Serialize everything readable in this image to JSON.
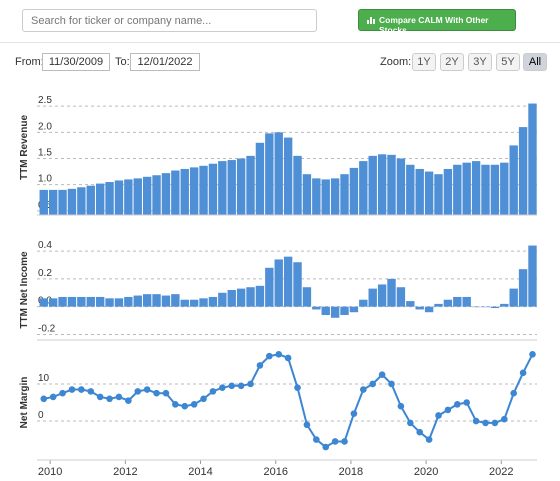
{
  "toolbar": {
    "search_placeholder": "Search for ticker or company name...",
    "compare_button": "Compare CALM With Other Stocks",
    "from_label": "From:",
    "from_date": "11/30/2009",
    "to_label": "To:",
    "to_date": "12/01/2022",
    "zoom_label": "Zoom:",
    "zoom_options": [
      "1Y",
      "2Y",
      "3Y",
      "5Y",
      "All"
    ],
    "zoom_selected": "All"
  },
  "chart_data": [
    {
      "type": "bar",
      "y_label": "TTM Revenue",
      "color": "#4f8fd6",
      "grid": true,
      "x": [
        2009.83,
        2010.08,
        2010.33,
        2010.58,
        2010.83,
        2011.08,
        2011.33,
        2011.58,
        2011.83,
        2012.08,
        2012.33,
        2012.58,
        2012.83,
        2013.08,
        2013.33,
        2013.58,
        2013.83,
        2014.08,
        2014.33,
        2014.58,
        2014.83,
        2015.08,
        2015.33,
        2015.58,
        2015.83,
        2016.08,
        2016.33,
        2016.58,
        2016.83,
        2017.08,
        2017.33,
        2017.58,
        2017.83,
        2018.08,
        2018.33,
        2018.58,
        2018.83,
        2019.08,
        2019.33,
        2019.58,
        2019.83,
        2020.08,
        2020.33,
        2020.58,
        2020.83,
        2021.08,
        2021.33,
        2021.58,
        2021.83,
        2022.08,
        2022.33,
        2022.58,
        2022.83
      ],
      "values": [
        0.9,
        0.9,
        0.9,
        0.92,
        0.95,
        0.98,
        1.02,
        1.05,
        1.08,
        1.1,
        1.12,
        1.15,
        1.18,
        1.22,
        1.27,
        1.3,
        1.33,
        1.36,
        1.4,
        1.45,
        1.47,
        1.5,
        1.55,
        1.8,
        1.98,
        2.0,
        1.9,
        1.55,
        1.2,
        1.12,
        1.1,
        1.12,
        1.2,
        1.32,
        1.45,
        1.55,
        1.58,
        1.57,
        1.5,
        1.38,
        1.3,
        1.25,
        1.2,
        1.3,
        1.38,
        1.42,
        1.45,
        1.38,
        1.38,
        1.42,
        1.75,
        2.1,
        2.55
      ],
      "xlim": [
        2009.65,
        2022.95
      ],
      "ylim": [
        0.42,
        3.0
      ],
      "yticks": [
        0.5,
        {
          "value": 1,
          "label": "1.0"
        },
        1.5,
        {
          "value": 2,
          "label": "2.0"
        },
        2.5
      ]
    },
    {
      "type": "bar",
      "y_label": "TTM Net Income",
      "color": "#4f8fd6",
      "grid": true,
      "x": [
        2009.83,
        2010.08,
        2010.33,
        2010.58,
        2010.83,
        2011.08,
        2011.33,
        2011.58,
        2011.83,
        2012.08,
        2012.33,
        2012.58,
        2012.83,
        2013.08,
        2013.33,
        2013.58,
        2013.83,
        2014.08,
        2014.33,
        2014.58,
        2014.83,
        2015.08,
        2015.33,
        2015.58,
        2015.83,
        2016.08,
        2016.33,
        2016.58,
        2016.83,
        2017.08,
        2017.33,
        2017.58,
        2017.83,
        2018.08,
        2018.33,
        2018.58,
        2018.83,
        2019.08,
        2019.33,
        2019.58,
        2019.83,
        2020.08,
        2020.33,
        2020.58,
        2020.83,
        2021.08,
        2021.33,
        2021.58,
        2021.83,
        2022.08,
        2022.33,
        2022.58,
        2022.83
      ],
      "values": [
        0.06,
        0.06,
        0.07,
        0.07,
        0.07,
        0.07,
        0.07,
        0.06,
        0.06,
        0.07,
        0.08,
        0.09,
        0.09,
        0.08,
        0.09,
        0.05,
        0.05,
        0.06,
        0.07,
        0.1,
        0.12,
        0.13,
        0.14,
        0.15,
        0.28,
        0.34,
        0.36,
        0.32,
        0.14,
        -0.02,
        -0.06,
        -0.08,
        -0.06,
        -0.04,
        0.05,
        0.13,
        0.16,
        0.2,
        0.14,
        0.04,
        -0.02,
        -0.04,
        0.02,
        0.05,
        0.07,
        0.07,
        0.0,
        0.0,
        -0.01,
        0.02,
        0.13,
        0.27,
        0.44
      ],
      "xlim": [
        2009.65,
        2022.95
      ],
      "ylim": [
        -0.24,
        0.48
      ],
      "yticks": [
        -0.2,
        {
          "value": 0,
          "label": "0.0"
        },
        0.2,
        0.4
      ]
    },
    {
      "type": "line",
      "y_label": "Net Margin",
      "color": "#3c86d2",
      "grid": true,
      "x": [
        2009.83,
        2010.08,
        2010.33,
        2010.58,
        2010.83,
        2011.08,
        2011.33,
        2011.58,
        2011.83,
        2012.08,
        2012.33,
        2012.58,
        2012.83,
        2013.08,
        2013.33,
        2013.58,
        2013.83,
        2014.08,
        2014.33,
        2014.58,
        2014.83,
        2015.08,
        2015.33,
        2015.58,
        2015.83,
        2016.08,
        2016.33,
        2016.58,
        2016.83,
        2017.08,
        2017.33,
        2017.58,
        2017.83,
        2018.08,
        2018.33,
        2018.58,
        2018.83,
        2019.08,
        2019.33,
        2019.58,
        2019.83,
        2020.08,
        2020.33,
        2020.58,
        2020.83,
        2021.08,
        2021.33,
        2021.58,
        2021.83,
        2022.08,
        2022.33,
        2022.58,
        2022.83
      ],
      "values": [
        6,
        6.5,
        7.5,
        8.5,
        8.5,
        8,
        6.5,
        6,
        6.5,
        5.5,
        8,
        8.5,
        7.5,
        7.5,
        4.5,
        4,
        4.5,
        6,
        8,
        9,
        9.5,
        9.5,
        10,
        15,
        17.5,
        18,
        17,
        9,
        -1,
        -5,
        -7,
        -5.5,
        -5.5,
        2,
        8.5,
        10,
        12.5,
        10,
        4,
        -0.5,
        -3,
        -5,
        1.5,
        3,
        4.5,
        5,
        0,
        -0.5,
        -0.5,
        0.5,
        7.5,
        13,
        18
      ],
      "xlim": [
        2009.65,
        2022.95
      ],
      "ylim": [
        -10.5,
        20.5
      ],
      "yticks": [
        0,
        10
      ],
      "xticks": [
        2010,
        2012,
        2014,
        2016,
        2018,
        2020,
        2022
      ]
    }
  ]
}
